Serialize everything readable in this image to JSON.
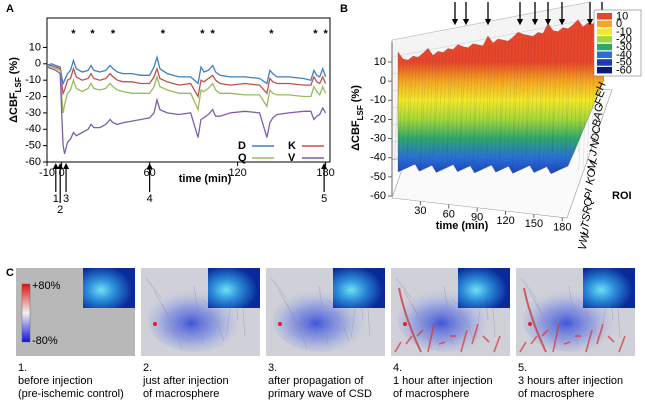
{
  "chart_data": [
    {
      "type": "line",
      "panel": "A",
      "x_label": "time (min)",
      "y_label": {
        "main": "ΔCBF",
        "sub": "LSF",
        "unit": "(%)"
      },
      "xlim": [
        -10,
        183
      ],
      "xticks": [
        -10,
        0,
        60,
        120,
        180
      ],
      "ylim": [
        -60,
        28
      ],
      "yticks": [
        -60,
        -50,
        -40,
        -30,
        -20,
        -10,
        0,
        10
      ],
      "x": [
        -10,
        -7,
        -4,
        -1,
        0,
        1,
        2,
        4,
        6,
        8,
        10,
        14,
        18,
        20,
        22,
        26,
        30,
        33,
        35,
        38,
        42,
        48,
        54,
        60,
        63,
        65,
        67,
        72,
        80,
        88,
        93,
        95,
        97,
        100,
        103,
        105,
        108,
        115,
        125,
        135,
        140,
        142,
        144,
        147,
        155,
        165,
        170,
        172,
        174,
        176,
        178,
        180
      ],
      "series": [
        {
          "name": "D",
          "color": "#3f7fc0",
          "values": [
            -1,
            0,
            -1,
            -2,
            -8,
            -12,
            -10,
            -6,
            -4,
            2,
            -3,
            -5,
            -4,
            -1,
            -4,
            -5,
            -4,
            -1,
            -3,
            -5,
            -6,
            -6,
            -7,
            -7,
            -2,
            4,
            -3,
            -6,
            -8,
            -8,
            -12,
            -2,
            -5,
            -4,
            -1,
            -5,
            -7,
            -8,
            -8,
            -9,
            -12,
            -4,
            -6,
            -8,
            -8,
            -9,
            -10,
            -4,
            -7,
            -8,
            -3,
            -8
          ]
        },
        {
          "name": "K",
          "color": "#c0504d",
          "values": [
            -1,
            -1,
            -2,
            -3,
            -12,
            -18,
            -16,
            -10,
            -9,
            -3,
            -8,
            -10,
            -9,
            -6,
            -9,
            -10,
            -9,
            -6,
            -8,
            -10,
            -11,
            -11,
            -12,
            -12,
            -8,
            -3,
            -9,
            -11,
            -13,
            -12,
            -20,
            -10,
            -11,
            -9,
            -7,
            -10,
            -12,
            -13,
            -12,
            -13,
            -18,
            -9,
            -11,
            -12,
            -12,
            -13,
            -13,
            -8,
            -11,
            -12,
            -8,
            -12
          ]
        },
        {
          "name": "Q",
          "color": "#9bbb59",
          "values": [
            -2,
            -2,
            -3,
            -4,
            -20,
            -30,
            -25,
            -18,
            -16,
            -10,
            -15,
            -17,
            -15,
            -12,
            -15,
            -16,
            -15,
            -12,
            -14,
            -16,
            -17,
            -18,
            -18,
            -18,
            -14,
            -8,
            -14,
            -16,
            -18,
            -18,
            -28,
            -16,
            -17,
            -15,
            -12,
            -16,
            -18,
            -18,
            -19,
            -19,
            -26,
            -16,
            -18,
            -19,
            -19,
            -20,
            -20,
            -14,
            -17,
            -19,
            -14,
            -18
          ]
        },
        {
          "name": "V",
          "color": "#7e5fa6",
          "values": [
            -2,
            -3,
            -4,
            -6,
            -30,
            -50,
            -55,
            -48,
            -46,
            -42,
            -44,
            -42,
            -40,
            -37,
            -39,
            -39,
            -37,
            -34,
            -36,
            -37,
            -36,
            -35,
            -34,
            -33,
            -30,
            -22,
            -28,
            -30,
            -31,
            -30,
            -45,
            -34,
            -33,
            -31,
            -28,
            -32,
            -32,
            -30,
            -29,
            -30,
            -45,
            -36,
            -33,
            -31,
            -30,
            -29,
            -29,
            -34,
            -32,
            -31,
            -27,
            -30
          ]
        }
      ],
      "asterisks": {
        "label": "*",
        "x": [
          8,
          21,
          35,
          69,
          96,
          103,
          143,
          173,
          180
        ]
      },
      "markers": [
        {
          "label": "1",
          "x": -4
        },
        {
          "label": "2",
          "x": -1
        },
        {
          "label": "3",
          "x": 3
        },
        {
          "label": "4",
          "x": 60
        },
        {
          "label": "5",
          "x": 179
        }
      ]
    },
    {
      "type": "surface",
      "panel": "B",
      "z_label": {
        "main": "ΔCBF",
        "sub": "LSF",
        "unit": "(%)"
      },
      "x_label": "time (min)",
      "y_label": "ROI",
      "zlim": [
        -60,
        10
      ],
      "zticks": [
        10,
        0,
        -10,
        -20,
        -30,
        -40,
        -50,
        -60
      ],
      "xlim": [
        0,
        185
      ],
      "xticks": [
        30,
        60,
        90,
        120,
        150,
        180
      ],
      "categories": [
        "H",
        "E",
        "F",
        "G",
        "A",
        "B",
        "C",
        "D",
        "N",
        "J",
        "L",
        "M",
        "O",
        "K",
        "I",
        "P",
        "Q",
        "R",
        "S",
        "T",
        "U",
        "W",
        "V"
      ],
      "colorbar": [
        {
          "value": 10,
          "color": "#e8452a"
        },
        {
          "value": 0,
          "color": "#f5a623"
        },
        {
          "value": -10,
          "color": "#f2e82a"
        },
        {
          "value": -20,
          "color": "#a6d63a"
        },
        {
          "value": -30,
          "color": "#2fa76a"
        },
        {
          "value": -40,
          "color": "#2a6fd6"
        },
        {
          "value": -50,
          "color": "#1a3ab8"
        },
        {
          "value": -60,
          "color": "#0b1a7a"
        }
      ]
    }
  ],
  "panel_labels": [
    "A",
    "B",
    "C"
  ],
  "images": {
    "scale_labels": [
      "+80%",
      "-80%"
    ],
    "captions": [
      [
        "1.",
        "before injection",
        "(pre-ischemic control)"
      ],
      [
        "2.",
        "just after injection",
        "of macrosphere"
      ],
      [
        "3.",
        "after propagation of",
        "primary wave of CSD"
      ],
      [
        "4.",
        "1 hour after injection",
        "of macrosphere"
      ],
      [
        "5.",
        "3 hours after injection",
        "of macrosphere"
      ]
    ]
  }
}
